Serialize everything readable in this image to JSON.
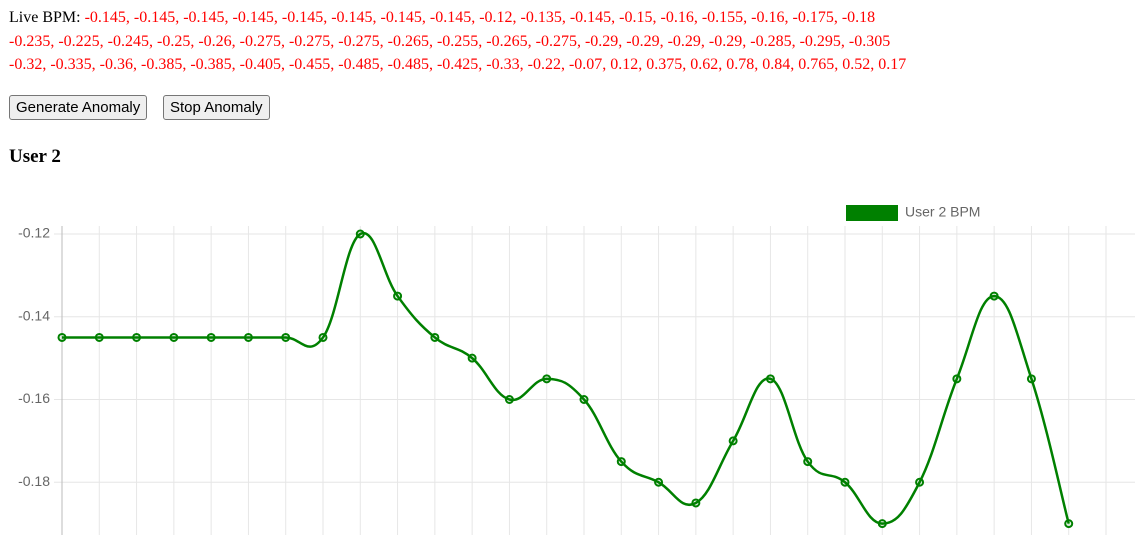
{
  "live_bpm": {
    "label": "Live BPM:",
    "lines": [
      [
        -0.145,
        -0.145,
        -0.145,
        -0.145,
        -0.145,
        -0.145,
        -0.145,
        -0.145,
        -0.12,
        -0.135,
        -0.145,
        -0.15,
        -0.16,
        -0.155,
        -0.16,
        -0.175,
        -0.18
      ],
      [
        -0.235,
        -0.225,
        -0.245,
        -0.25,
        -0.26,
        -0.275,
        -0.275,
        -0.275,
        -0.265,
        -0.255,
        -0.265,
        -0.275,
        -0.29,
        -0.29,
        -0.29,
        -0.29,
        -0.285,
        -0.295,
        -0.305
      ],
      [
        -0.32,
        -0.335,
        -0.36,
        -0.385,
        -0.385,
        -0.405,
        -0.455,
        -0.485,
        -0.485,
        -0.425,
        -0.33,
        -0.22,
        -0.07,
        0.12,
        0.375,
        0.62,
        0.78,
        0.84,
        0.765,
        0.52,
        0.17
      ]
    ]
  },
  "buttons": [
    "Generate Anomaly",
    "Stop Anomaly"
  ],
  "heading": "User 2",
  "chart_data": {
    "type": "line",
    "series": [
      {
        "name": "User 2 BPM",
        "color": "#008000",
        "values": [
          -0.145,
          -0.145,
          -0.145,
          -0.145,
          -0.145,
          -0.145,
          -0.145,
          -0.145,
          -0.12,
          -0.135,
          -0.145,
          -0.15,
          -0.16,
          -0.155,
          -0.16,
          -0.175,
          -0.18,
          -0.185,
          -0.17,
          -0.155,
          -0.175,
          -0.18,
          -0.19,
          -0.18,
          -0.155,
          -0.135,
          -0.155,
          -0.19
        ]
      }
    ],
    "ylim": [
      -0.2,
      -0.12
    ],
    "yticks": [
      -0.12,
      -0.14,
      -0.16,
      -0.18
    ],
    "grid": true,
    "legend": "top"
  }
}
